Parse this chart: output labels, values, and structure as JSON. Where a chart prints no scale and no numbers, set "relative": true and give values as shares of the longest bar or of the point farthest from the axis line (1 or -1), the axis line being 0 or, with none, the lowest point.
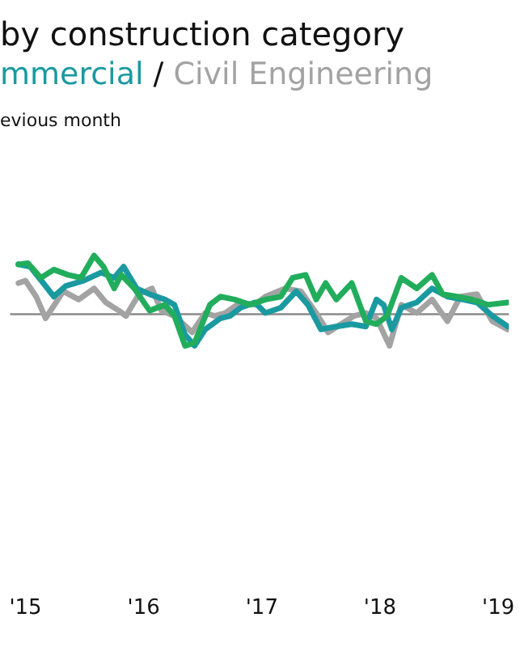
{
  "chart_data": {
    "type": "line",
    "title": "by construction category",
    "annotations": [
      "/",
      "evious month"
    ],
    "relative": true,
    "legend": "top left",
    "grid": false,
    "marker": "none",
    "line_style": "solid",
    "xlim": [
      2014.87,
      2019.09
    ],
    "xticks": [
      {
        "value": 2015,
        "label": "'15"
      },
      {
        "value": 2016,
        "label": "'16"
      },
      {
        "value": 2017,
        "label": "'17"
      },
      {
        "value": 2018,
        "label": "'18"
      },
      {
        "value": 2019,
        "label": "'19"
      }
    ],
    "ref_lines": [
      {
        "axis": "y",
        "value": 0,
        "color": "#8a8a8a"
      }
    ],
    "series": [
      {
        "color": "#22ad5c",
        "x": [
          2014.94,
          2015.02,
          2015.13,
          2015.24,
          2015.36,
          2015.47,
          2015.58,
          2015.66,
          2015.75,
          2015.81,
          2015.92,
          2016.05,
          2016.18,
          2016.26,
          2016.35,
          2016.43,
          2016.56,
          2016.65,
          2016.77,
          2016.9,
          2017.03,
          2017.16,
          2017.26,
          2017.37,
          2017.46,
          2017.54,
          2017.63,
          2017.76,
          2017.88,
          2017.97,
          2018.06,
          2018.18,
          2018.31,
          2018.44,
          2018.53,
          2018.65,
          2018.78,
          2018.91,
          2019.08
        ],
        "values": [
          0.85,
          0.87,
          0.62,
          0.76,
          0.67,
          0.62,
          1,
          0.81,
          0.44,
          0.67,
          0.44,
          0.06,
          0.16,
          -0.03,
          -0.54,
          -0.49,
          0.16,
          0.3,
          0.25,
          0.16,
          0.25,
          0.3,
          0.62,
          0.67,
          0.25,
          0.53,
          0.25,
          0.53,
          -0.12,
          -0.17,
          -0.03,
          0.62,
          0.44,
          0.67,
          0.34,
          0.3,
          0.25,
          0.16,
          0.2
        ]
      },
      {
        "name": "mmercial",
        "color": "#1a9aa0",
        "x": [
          2014.94,
          2015.04,
          2015.15,
          2015.24,
          2015.34,
          2015.49,
          2015.64,
          2015.75,
          2015.83,
          2015.94,
          2016.05,
          2016.18,
          2016.26,
          2016.35,
          2016.43,
          2016.52,
          2016.65,
          2016.73,
          2016.82,
          2016.94,
          2017.03,
          2017.16,
          2017.29,
          2017.39,
          2017.5,
          2017.63,
          2017.76,
          2017.88,
          2017.97,
          2018.03,
          2018.1,
          2018.18,
          2018.31,
          2018.44,
          2018.57,
          2018.7,
          2018.82,
          2018.95,
          2019.08
        ],
        "values": [
          0.85,
          0.81,
          0.53,
          0.3,
          0.48,
          0.57,
          0.71,
          0.62,
          0.81,
          0.44,
          0.34,
          0.25,
          0.16,
          -0.35,
          -0.54,
          -0.26,
          -0.07,
          -0.03,
          0.11,
          0.2,
          0.02,
          0.11,
          0.39,
          0.16,
          -0.26,
          -0.21,
          -0.17,
          -0.21,
          0.25,
          0.16,
          -0.26,
          0.11,
          0.2,
          0.44,
          0.3,
          0.25,
          0.2,
          -0.03,
          -0.21
        ]
      },
      {
        "name": "Civil Engineering",
        "color": "#a3a3a3",
        "x": [
          2014.94,
          2015.0,
          2015.09,
          2015.17,
          2015.32,
          2015.45,
          2015.58,
          2015.68,
          2015.79,
          2015.85,
          2015.96,
          2016.07,
          2016.15,
          2016.26,
          2016.41,
          2016.52,
          2016.6,
          2016.69,
          2016.82,
          2016.94,
          2017.03,
          2017.2,
          2017.33,
          2017.46,
          2017.56,
          2017.67,
          2017.78,
          2017.88,
          2017.97,
          2018.08,
          2018.18,
          2018.31,
          2018.44,
          2018.57,
          2018.68,
          2018.82,
          2018.95,
          2019.08
        ],
        "values": [
          0.53,
          0.57,
          0.3,
          -0.07,
          0.39,
          0.25,
          0.44,
          0.2,
          0.06,
          -0.03,
          0.34,
          0.44,
          0.06,
          -0.03,
          -0.31,
          0.02,
          -0.03,
          0.02,
          0.2,
          0.16,
          0.3,
          0.44,
          0.39,
          0.02,
          -0.31,
          -0.17,
          -0.03,
          0.02,
          -0.07,
          -0.54,
          0.16,
          0.02,
          0.25,
          -0.12,
          0.3,
          0.34,
          -0.12,
          -0.26
        ]
      }
    ]
  }
}
